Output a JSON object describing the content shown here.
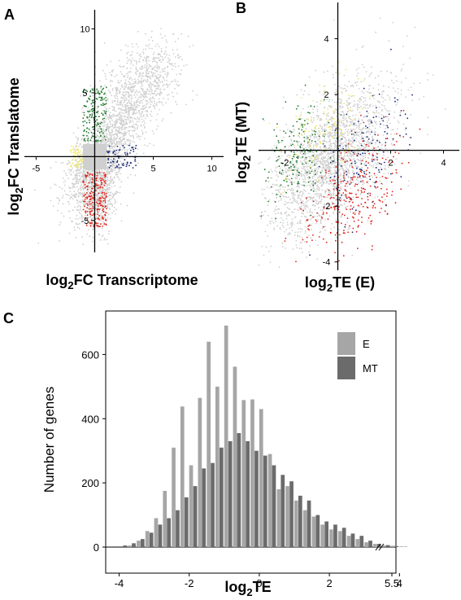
{
  "panel_labels": {
    "a": "A",
    "b": "B",
    "c": "C"
  },
  "colors": {
    "gray_points": "#cfcfcf",
    "green": "#1f7a2e",
    "blue": "#1c2a7a",
    "red": "#e2231a",
    "yellow": "#f2ea6a",
    "bar_E": "#a6a6a6",
    "bar_MT": "#6b6b6b",
    "axis": "#000000"
  },
  "chart_data": [
    {
      "id": "A",
      "type": "scatter",
      "xlabel": {
        "prefix": "log",
        "sub": "2",
        "suffix": "FC Transcriptome"
      },
      "ylabel": {
        "prefix": "log",
        "sub": "2",
        "suffix": "FC Translatome"
      },
      "xlim": [
        -6,
        11
      ],
      "ylim": [
        -7.5,
        11.5
      ],
      "x_ticks": [
        "-5",
        "5",
        "10"
      ],
      "y_ticks": [
        "10",
        "5",
        "-5"
      ],
      "x_tick_values": [
        -5,
        5,
        10
      ],
      "y_tick_values": [
        10,
        5,
        -5
      ],
      "groups": [
        {
          "name": "",
          "color_key": "gray_points",
          "seed": 11,
          "n": 1400,
          "cx": 0.8,
          "cy": 0.6,
          "sx": 1.7,
          "sy": 2.3,
          "rho": 0.7
        },
        {
          "name": "",
          "color_key": "gray_points",
          "seed": 12,
          "n": 700,
          "cx": 0.3,
          "cy": -2.5,
          "sx": 0.8,
          "sy": 1.6,
          "rho": 0.2
        },
        {
          "name": "",
          "color_key": "gray_points",
          "seed": 13,
          "n": 700,
          "cx": 4.0,
          "cy": 5.5,
          "sx": 1.7,
          "sy": 1.8,
          "rho": 0.4
        },
        {
          "name": "",
          "color_key": "green",
          "seed": 14,
          "box": [
            -1,
            1,
            1.2,
            5.5
          ],
          "n": 160
        },
        {
          "name": "",
          "color_key": "blue",
          "seed": 15,
          "box": [
            1,
            3.6,
            -0.9,
            0.9
          ],
          "n": 70
        },
        {
          "name": "",
          "color_key": "red",
          "seed": 16,
          "box": [
            -1,
            1,
            -5.5,
            -1.2
          ],
          "n": 220
        },
        {
          "name": "",
          "color_key": "yellow",
          "seed": 17,
          "box": [
            -2.1,
            -1,
            -0.9,
            0.9
          ],
          "n": 60
        }
      ],
      "central_box": [
        -1,
        1,
        -1,
        1
      ]
    },
    {
      "id": "B",
      "type": "scatter",
      "xlabel": {
        "prefix": "log",
        "sub": "2",
        "suffix": "TE (E)"
      },
      "ylabel": {
        "prefix": "log",
        "sub": "2",
        "suffix": "TE (MT)"
      },
      "xlim": [
        -3,
        4.6
      ],
      "ylim": [
        -4.3,
        5.3
      ],
      "x_ticks": [
        "-2",
        "2",
        "4"
      ],
      "y_ticks": [
        "4",
        "2",
        "-2",
        "-4"
      ],
      "x_tick_values": [
        -2,
        2,
        4
      ],
      "y_tick_values": [
        4,
        2,
        -2,
        -4
      ],
      "groups": [
        {
          "name": "",
          "color_key": "gray_points",
          "seed": 21,
          "n": 2200,
          "cx": -0.3,
          "cy": -0.3,
          "sx": 1.2,
          "sy": 1.4,
          "rho": 0.55
        },
        {
          "name": "",
          "color_key": "green",
          "seed": 22,
          "n": 170,
          "cx": -1.6,
          "cy": -0.1,
          "sx": 0.7,
          "sy": 0.9,
          "rho": 0.5
        },
        {
          "name": "",
          "color_key": "blue",
          "seed": 23,
          "n": 150,
          "cx": 1.0,
          "cy": -0.2,
          "sx": 0.8,
          "sy": 1.1,
          "rho": 0.5
        },
        {
          "name": "",
          "color_key": "red",
          "seed": 24,
          "n": 280,
          "cx": 0.5,
          "cy": -1.7,
          "sx": 0.9,
          "sy": 1.0,
          "rho": 0.5
        },
        {
          "name": "",
          "color_key": "yellow",
          "seed": 25,
          "n": 110,
          "cx": -0.5,
          "cy": 0.8,
          "sx": 0.8,
          "sy": 0.9,
          "rho": 0.4
        }
      ]
    },
    {
      "id": "C",
      "type": "bar",
      "xlabel": {
        "prefix": "log",
        "sub": "2",
        "suffix": "TE"
      },
      "ylabel": "Number of genes",
      "ylim": [
        -35,
        720
      ],
      "x_ticks": [
        "-4",
        "-2",
        "0",
        "2",
        "4",
        "5.5"
      ],
      "x_tick_values": [
        -4,
        -2,
        0,
        2,
        4,
        5.5
      ],
      "y_ticks": [
        "0",
        "200",
        "400",
        "600"
      ],
      "y_tick_values": [
        0,
        200,
        400,
        600
      ],
      "bin_start": -4.0,
      "bin_width": 0.25,
      "axis_break_at": 5.1,
      "series": [
        {
          "name": "E",
          "color_key": "bar_E",
          "values": [
            0,
            5,
            20,
            50,
            90,
            175,
            310,
            438,
            255,
            465,
            640,
            500,
            690,
            562,
            458,
            460,
            430,
            290,
            180,
            190,
            145,
            115,
            95,
            70,
            55,
            50,
            35,
            25,
            15,
            10,
            5,
            4,
            2,
            0,
            0,
            0
          ]
        },
        {
          "name": "MT",
          "color_key": "bar_MT",
          "values": [
            5,
            12,
            25,
            45,
            70,
            90,
            115,
            155,
            190,
            245,
            262,
            310,
            330,
            355,
            330,
            300,
            285,
            255,
            225,
            205,
            160,
            145,
            100,
            80,
            70,
            60,
            42,
            35,
            20,
            10,
            6,
            3,
            1,
            0,
            0,
            0
          ]
        }
      ]
    }
  ]
}
